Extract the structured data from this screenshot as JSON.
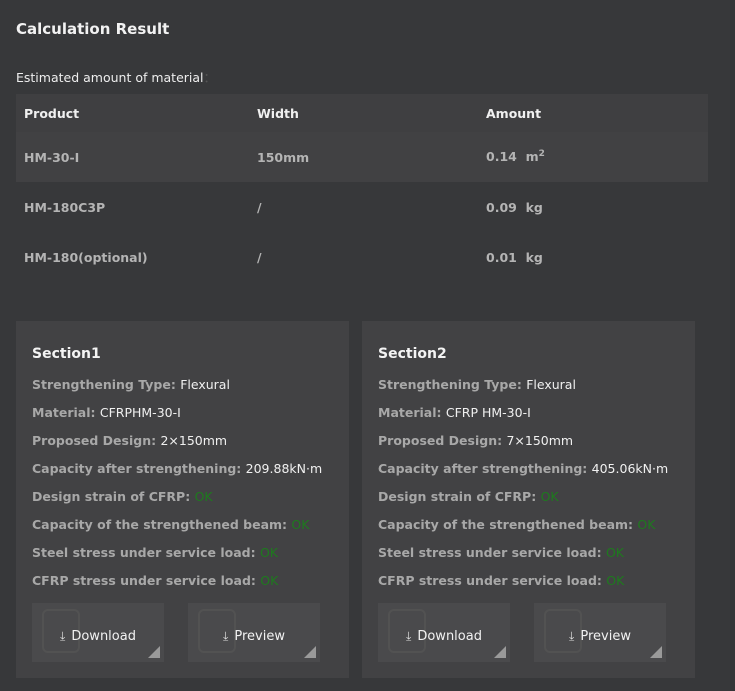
{
  "title": "Calculation Result",
  "subtitle": "Estimated amount of material",
  "subtitle_colon": "：",
  "table": {
    "headers": [
      "Product",
      "Width",
      "Amount"
    ],
    "rows": [
      {
        "product": "HM-30-I",
        "width": "150mm",
        "amount": "0.14",
        "unit": "m",
        "sup": "2"
      },
      {
        "product": "HM-180C3P",
        "width": "/",
        "amount": "0.09",
        "unit": "kg",
        "sup": ""
      },
      {
        "product": "HM-180(optional)",
        "width": "/",
        "amount": "0.01",
        "unit": "kg",
        "sup": ""
      }
    ]
  },
  "sections": [
    {
      "title": "Section1",
      "type_label": "Strengthening Type:",
      "type": "Flexural",
      "material_label": "Material:",
      "material": "CFRPHM-30-I",
      "design_label": "Proposed Design:",
      "design": "2×150mm",
      "capacity_label": "Capacity after strengthening:",
      "capacity": "209.88kN·m",
      "strain_label": "Design strain of CFRP:",
      "strain": "OK",
      "beam_label": "Capacity of the strengthened beam:",
      "beam": "OK",
      "steel_label": "Steel stress under service load:",
      "steel": "OK",
      "cfrp_label": "CFRP stress under service load:",
      "cfrp": "OK",
      "download": "Download",
      "preview": "Preview"
    },
    {
      "title": "Section2",
      "type_label": "Strengthening Type:",
      "type": "Flexural",
      "material_label": "Material:",
      "material": "CFRP HM-30-I",
      "design_label": "Proposed Design:",
      "design": "7×150mm",
      "capacity_label": "Capacity after strengthening:",
      "capacity": "405.06kN·m",
      "strain_label": "Design strain of CFRP:",
      "strain": "OK",
      "beam_label": "Capacity of the strengthened beam:",
      "beam": "OK",
      "steel_label": "Steel stress under service load:",
      "steel": "OK",
      "cfrp_label": "CFRP stress under service load:",
      "cfrp": "OK",
      "download": "Download",
      "preview": "Preview"
    }
  ],
  "colors": {
    "ok": "#1e7a1e",
    "background": "#37383a",
    "card": "#424244"
  }
}
